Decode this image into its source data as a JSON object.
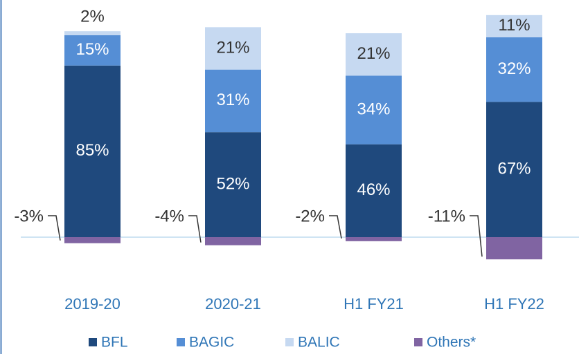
{
  "chart_data": {
    "type": "stacked_bar",
    "categories": [
      "2019-20",
      "2020-21",
      "H1 FY21",
      "H1 FY22"
    ],
    "series": [
      {
        "name": "BFL",
        "color": "#1f497d",
        "values": [
          85,
          52,
          46,
          67
        ],
        "value_labels": [
          "85%",
          "52%",
          "46%",
          "67%"
        ]
      },
      {
        "name": "BAGIC",
        "color": "#558ed5",
        "values": [
          15,
          31,
          34,
          32
        ],
        "value_labels": [
          "15%",
          "31%",
          "34%",
          "32%"
        ]
      },
      {
        "name": "BALIC",
        "color": "#c6d9f1",
        "values": [
          2,
          21,
          21,
          11
        ],
        "value_labels": [
          "2%",
          "21%",
          "21%",
          "11%"
        ]
      },
      {
        "name": "Others*",
        "color": "#8064a2",
        "values": [
          -3,
          -4,
          -2,
          -11
        ],
        "value_labels": [
          "-3%",
          "-4%",
          "-2%",
          "-11%"
        ]
      }
    ]
  }
}
